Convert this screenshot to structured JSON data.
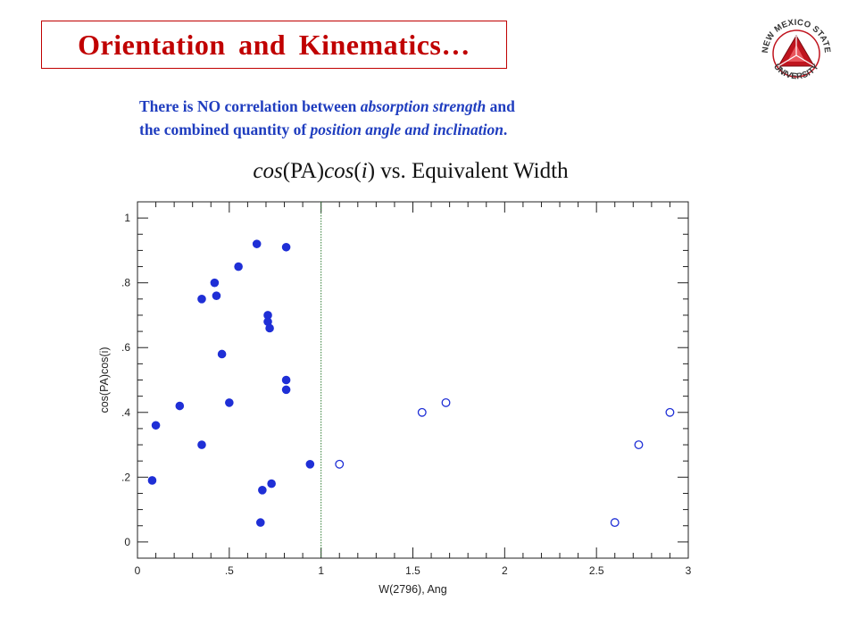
{
  "slide": {
    "title": "Orientation and Kinematics…",
    "subtitle_parts": [
      {
        "text": "There is NO correlation between ",
        "italic": false,
        "line": 1
      },
      {
        "text": "absorption strength",
        "italic": true,
        "line": 1
      },
      {
        "text": " and",
        "italic": false,
        "line": 1
      },
      {
        "text": "the combined quantity of ",
        "italic": false,
        "line": 2
      },
      {
        "text": "position angle and inclination",
        "italic": true,
        "line": 2
      },
      {
        "text": ".",
        "italic": false,
        "line": 2
      }
    ],
    "chart_heading_parts": [
      {
        "text": "cos",
        "italic": true
      },
      {
        "text": "(PA)",
        "italic": false
      },
      {
        "text": "cos",
        "italic": true
      },
      {
        "text": "(",
        "italic": false
      },
      {
        "text": "i",
        "italic": true
      },
      {
        "text": ") vs. Equivalent Width",
        "italic": false
      }
    ],
    "logo": {
      "text_top": "NEW MEXICO STATE",
      "text_bottom": "UNIVERSITY",
      "color": "#c0141e",
      "icon": "nmsu-triangle-logo"
    }
  },
  "chart_data": {
    "type": "scatter",
    "xlabel": "W(2796), Ang",
    "ylabel": "cos(PA)cos(i)",
    "xlim": [
      0,
      3
    ],
    "ylim": [
      -0.05,
      1.05
    ],
    "xticks": [
      0,
      0.5,
      1,
      1.5,
      2,
      2.5,
      3
    ],
    "xtick_labels": [
      "0",
      ".5",
      "1",
      "1.5",
      "2",
      "2.5",
      "3"
    ],
    "yticks": [
      0,
      0.2,
      0.4,
      0.6,
      0.8,
      1
    ],
    "ytick_labels": [
      "0",
      ".2",
      ".4",
      ".6",
      ".8",
      "1"
    ],
    "grid": false,
    "point_color": "#1f2fd6",
    "divider_x": 1.0,
    "divider_color": "#2e7d32",
    "series": [
      {
        "marker": "filled",
        "x": [
          0.08,
          0.1,
          0.23,
          0.35,
          0.35,
          0.42,
          0.43,
          0.46,
          0.5,
          0.55,
          0.65,
          0.67,
          0.68,
          0.71,
          0.71,
          0.72,
          0.73,
          0.81,
          0.81,
          0.81,
          0.94
        ],
        "y": [
          0.19,
          0.36,
          0.42,
          0.3,
          0.75,
          0.8,
          0.76,
          0.58,
          0.43,
          0.85,
          0.92,
          0.06,
          0.16,
          0.7,
          0.68,
          0.66,
          0.18,
          0.91,
          0.5,
          0.47,
          0.24
        ]
      },
      {
        "marker": "open",
        "x": [
          1.1,
          1.55,
          1.68,
          2.6,
          2.73,
          2.9
        ],
        "y": [
          0.24,
          0.4,
          0.43,
          0.06,
          0.3,
          0.4
        ]
      }
    ]
  }
}
